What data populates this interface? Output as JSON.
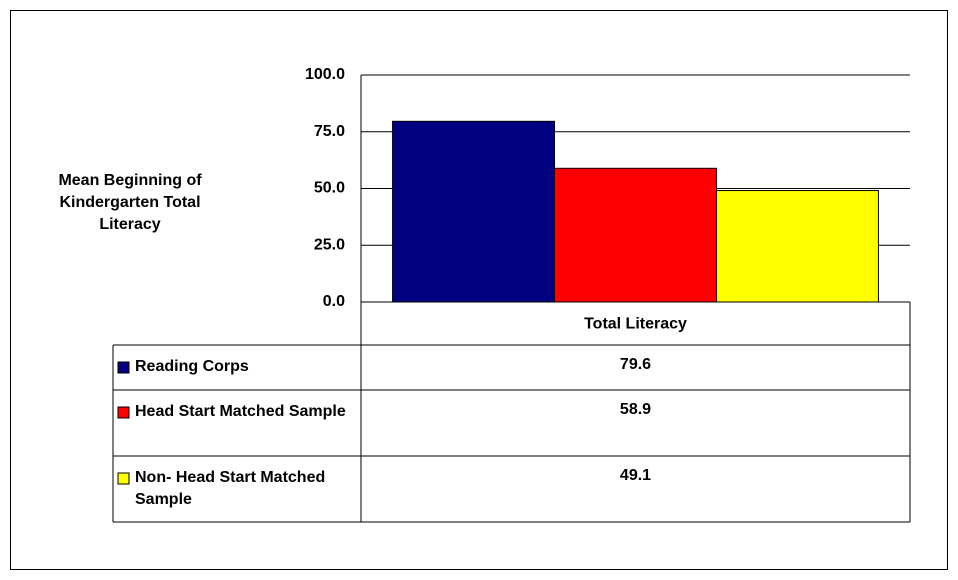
{
  "chart_data": {
    "type": "bar",
    "ylabel": "Mean Beginning of Kindergarten Total Literacy",
    "categories": [
      "Total Literacy"
    ],
    "series": [
      {
        "name": "Reading Corps",
        "color": "#000080",
        "values": [
          79.6
        ]
      },
      {
        "name": "Head Start Matched Sample",
        "color": "#ff0000",
        "values": [
          58.9
        ]
      },
      {
        "name": "Non- Head Start Matched Sample",
        "color": "#ffff00",
        "values": [
          49.1
        ]
      }
    ],
    "ylim": [
      0,
      100
    ],
    "yticks": [
      {
        "value": 0,
        "label": "0.0"
      },
      {
        "value": 25,
        "label": "25.0"
      },
      {
        "value": 50,
        "label": "50.0"
      },
      {
        "value": 75,
        "label": "75.0"
      },
      {
        "value": 100,
        "label": "100.0"
      }
    ],
    "grid": true,
    "data_table": true
  }
}
